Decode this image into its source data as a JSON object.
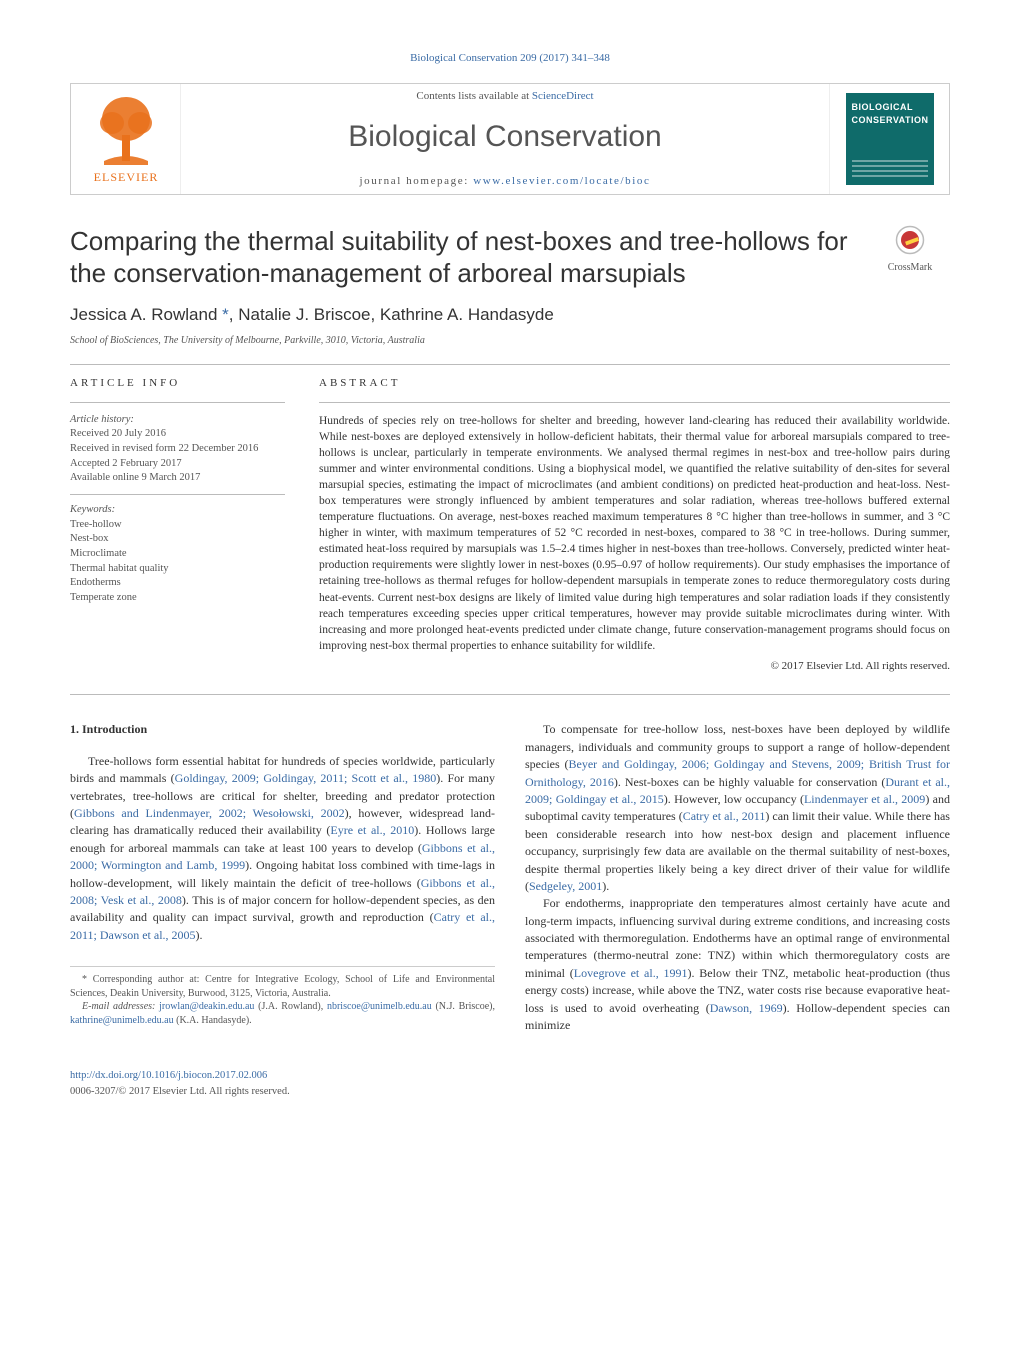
{
  "journal_ref": "Biological Conservation 209 (2017) 341–348",
  "header": {
    "contents_prefix": "Contents lists available at ",
    "contents_link": "ScienceDirect",
    "journal_name": "Biological Conservation",
    "homepage_prefix": "journal homepage: ",
    "homepage_link": "www.elsevier.com/locate/bioc",
    "publisher_name": "ELSEVIER",
    "cover_line1": "BIOLOGICAL",
    "cover_line2": "CONSERVATION"
  },
  "title": "Comparing the thermal suitability of nest-boxes and tree-hollows for the conservation-management of arboreal marsupials",
  "crossmark": "CrossMark",
  "authors_html": "Jessica A. Rowland <a class=\"ref\" href=\"#\">*</a>, Natalie J. Briscoe, Kathrine A. Handasyde",
  "affiliation": "School of BioSciences, The University of Melbourne, Parkville, 3010, Victoria, Australia",
  "article_info": {
    "heading": "article info",
    "history_label": "Article history:",
    "received": "Received 20 July 2016",
    "revised": "Received in revised form 22 December 2016",
    "accepted": "Accepted 2 February 2017",
    "online": "Available online 9 March 2017",
    "keywords_label": "Keywords:",
    "keywords": [
      "Tree-hollow",
      "Nest-box",
      "Microclimate",
      "Thermal habitat quality",
      "Endotherms",
      "Temperate zone"
    ]
  },
  "abstract": {
    "heading": "abstract",
    "text": "Hundreds of species rely on tree-hollows for shelter and breeding, however land-clearing has reduced their availability worldwide. While nest-boxes are deployed extensively in hollow-deficient habitats, their thermal value for arboreal marsupials compared to tree-hollows is unclear, particularly in temperate environments. We analysed thermal regimes in nest-box and tree-hollow pairs during summer and winter environmental conditions. Using a biophysical model, we quantified the relative suitability of den-sites for several marsupial species, estimating the impact of microclimates (and ambient conditions) on predicted heat-production and heat-loss. Nest-box temperatures were strongly influenced by ambient temperatures and solar radiation, whereas tree-hollows buffered external temperature fluctuations. On average, nest-boxes reached maximum temperatures 8 °C higher than tree-hollows in summer, and 3 °C higher in winter, with maximum temperatures of 52 °C recorded in nest-boxes, compared to 38 °C in tree-hollows. During summer, estimated heat-loss required by marsupials was 1.5–2.4 times higher in nest-boxes than tree-hollows. Conversely, predicted winter heat-production requirements were slightly lower in nest-boxes (0.95–0.97 of hollow requirements). Our study emphasises the importance of retaining tree-hollows as thermal refuges for hollow-dependent marsupials in temperate zones to reduce thermoregulatory costs during heat-events. Current nest-box designs are likely of limited value during high temperatures and solar radiation loads if they consistently reach temperatures exceeding species upper critical temperatures, however may provide suitable microclimates during winter. With increasing and more prolonged heat-events predicted under climate change, future conservation-management programs should focus on improving nest-box thermal properties to enhance suitability for wildlife.",
    "copyright": "© 2017 Elsevier Ltd. All rights reserved."
  },
  "body": {
    "section_num": "1.",
    "section_title": "Introduction",
    "col1_html": "<p>Tree-hollows form essential habitat for hundreds of species worldwide, particularly birds and mammals (<a class=\"ref\" href=\"#\">Goldingay, 2009; Goldingay, 2011; Scott et al., 1980</a>). For many vertebrates, tree-hollows are critical for shelter, breeding and predator protection (<a class=\"ref\" href=\"#\">Gibbons and Lindenmayer, 2002; Wesołowski, 2002</a>), however, widespread land-clearing has dramatically reduced their availability (<a class=\"ref\" href=\"#\">Eyre et al., 2010</a>). Hollows large enough for arboreal mammals can take at least 100 years to develop (<a class=\"ref\" href=\"#\">Gibbons et al., 2000; Wormington and Lamb, 1999</a>). Ongoing habitat loss combined with time-lags in hollow-development, will likely maintain the deficit of tree-hollows (<a class=\"ref\" href=\"#\">Gibbons et al., 2008; Vesk et al., 2008</a>). This is of major concern for hollow-dependent species, as den availability and quality can impact survival, growth and reproduction (<a class=\"ref\" href=\"#\">Catry et al., 2011; Dawson et al., 2005</a>).</p>",
    "col2_html": "<p>To compensate for tree-hollow loss, nest-boxes have been deployed by wildlife managers, individuals and community groups to support a range of hollow-dependent species (<a class=\"ref\" href=\"#\">Beyer and Goldingay, 2006; Goldingay and Stevens, 2009; British Trust for Ornithology, 2016</a>). Nest-boxes can be highly valuable for conservation (<a class=\"ref\" href=\"#\">Durant et al., 2009; Goldingay et al., 2015</a>). However, low occupancy (<a class=\"ref\" href=\"#\">Lindenmayer et al., 2009</a>) and suboptimal cavity temperatures (<a class=\"ref\" href=\"#\">Catry et al., 2011</a>) can limit their value. While there has been considerable research into how nest-box design and placement influence occupancy, surprisingly few data are available on the thermal suitability of nest-boxes, despite thermal properties likely being a key direct driver of their value for wildlife (<a class=\"ref\" href=\"#\">Sedgeley, 2001</a>).</p><p>For endotherms, inappropriate den temperatures almost certainly have acute and long-term impacts, influencing survival during extreme conditions, and increasing costs associated with thermoregulation. Endotherms have an optimal range of environmental temperatures (thermo-neutral zone: TNZ) within which thermoregulatory costs are minimal (<a class=\"ref\" href=\"#\">Lovegrove et al., 1991</a>). Below their TNZ, metabolic heat-production (thus energy costs) increase, while above the TNZ, water costs rise because evaporative heat-loss is used to avoid overheating (<a class=\"ref\" href=\"#\">Dawson, 1969</a>). Hollow-dependent species can minimize</p>"
  },
  "footnotes": {
    "corr_html": "* Corresponding author at: Centre for Integrative Ecology, School of Life and Environmental Sciences, Deakin University, Burwood, 3125, Victoria, Australia.",
    "emails_html": "<i>E-mail addresses:</i> <a href=\"#\">jrowlan@deakin.edu.au</a> (J.A. Rowland), <a href=\"#\">nbriscoe@unimelb.edu.au</a> (N.J. Briscoe), <a href=\"#\">kathrine@unimelb.edu.au</a> (K.A. Handasyde)."
  },
  "footer": {
    "doi": "http://dx.doi.org/10.1016/j.biocon.2017.02.006",
    "issn": "0006-3207/© 2017 Elsevier Ltd. All rights reserved."
  },
  "colors": {
    "link": "#3a6ba5",
    "elsevier_orange": "#e9711c",
    "cover_bg": "#0f6b6a"
  }
}
